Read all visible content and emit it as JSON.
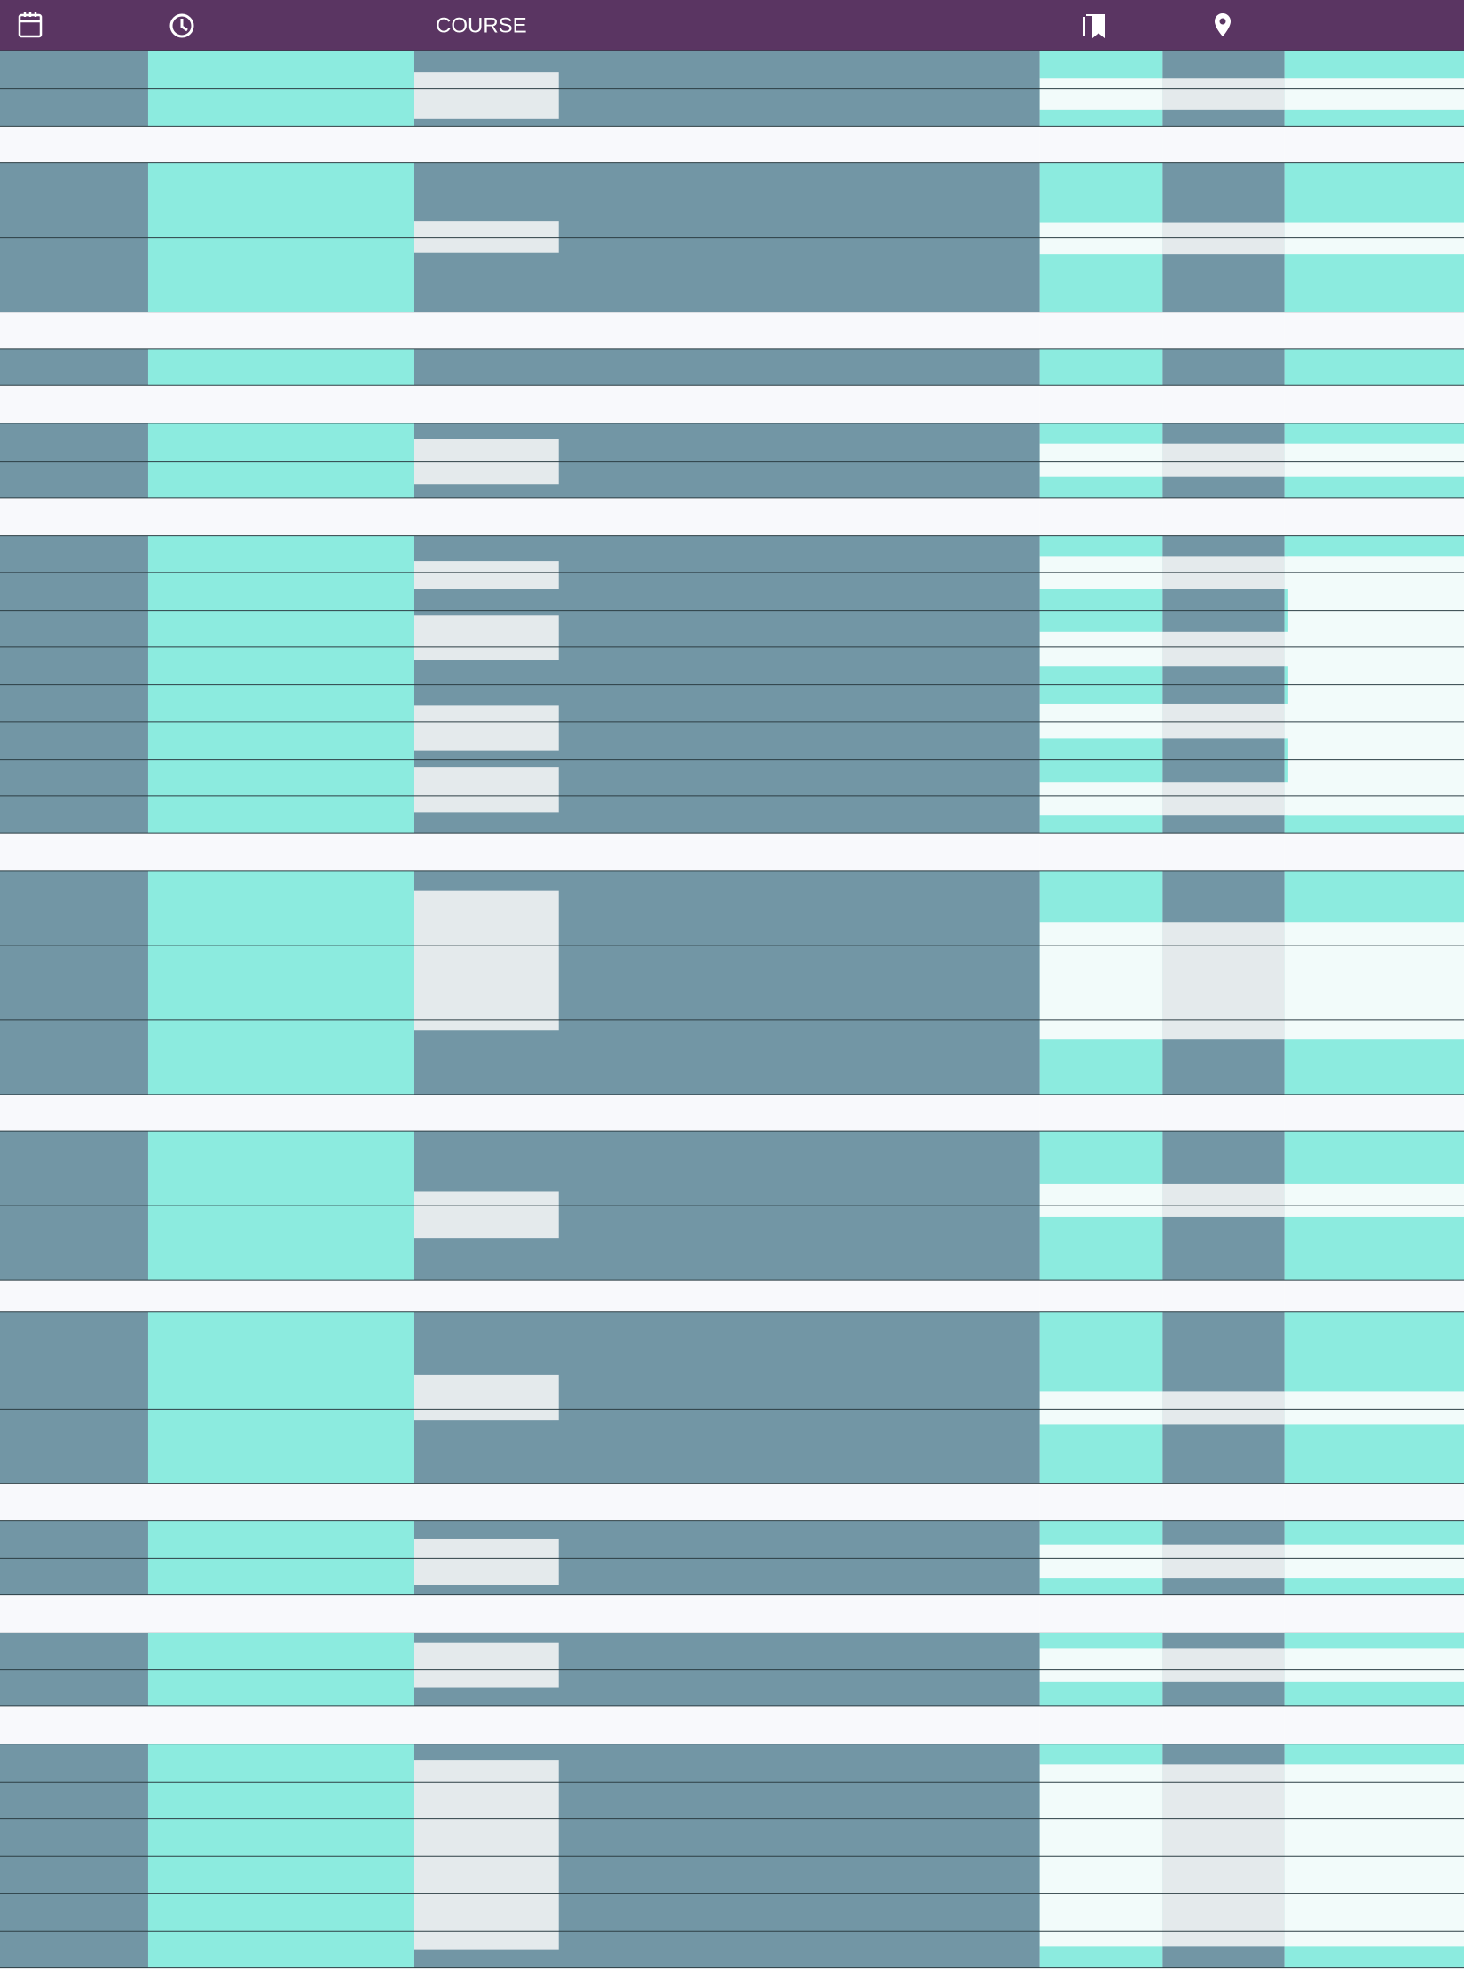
{
  "header": {
    "course": "COURSE"
  }
}
